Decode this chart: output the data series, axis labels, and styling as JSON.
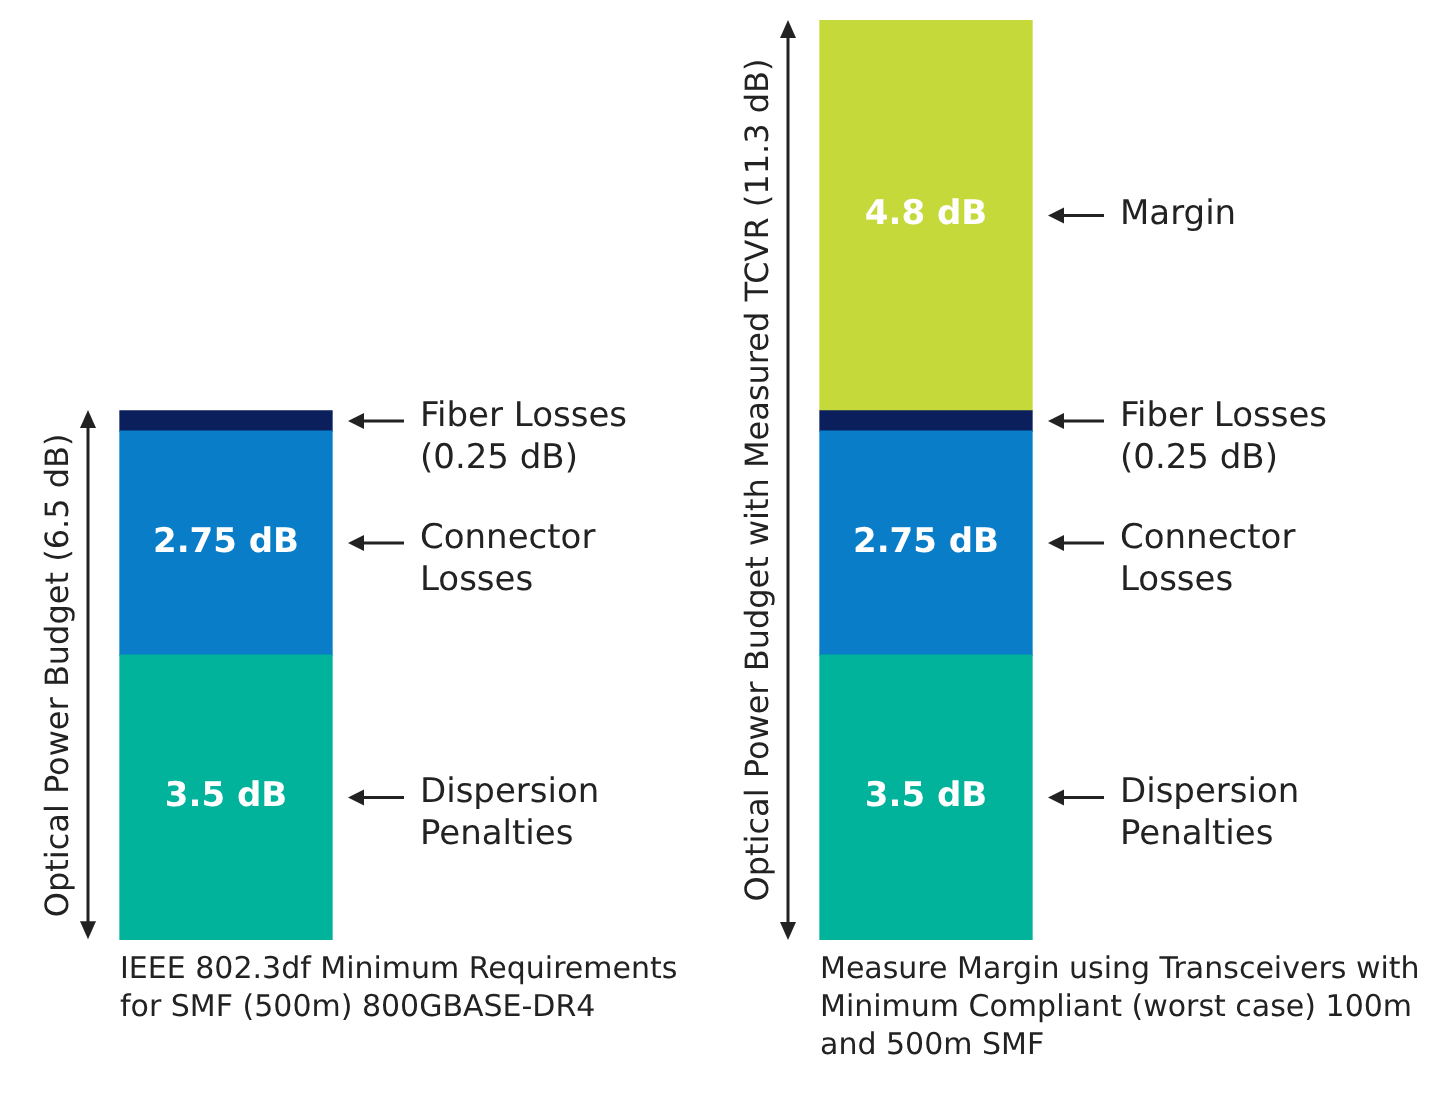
{
  "chart_data": [
    {
      "type": "bar",
      "stacked": true,
      "categories": [
        null
      ],
      "ylabel": "Optical Power Budget (6.5 dB)",
      "series": [
        {
          "name": "Dispersion Penalties",
          "color": "#00b39a",
          "values": [
            3.5
          ],
          "value_labels": [
            "3.5 dB"
          ]
        },
        {
          "name": "Connector Losses",
          "color": "#0a7dc8",
          "values": [
            2.75
          ],
          "value_labels": [
            "2.75 dB"
          ]
        },
        {
          "name": "Fiber Losses (0.25 dB)",
          "color": "#0a1f5c",
          "values": [
            0.25
          ],
          "value_labels": [
            null
          ]
        }
      ],
      "annotations": [
        "IEEE 802.3df Minimum Requirements for SMF (500m) 800GBASE-DR4"
      ]
    },
    {
      "type": "bar",
      "stacked": true,
      "categories": [
        null
      ],
      "ylabel": "Optical Power Budget with Measured TCVR (11.3 dB)",
      "series": [
        {
          "name": "Dispersion Penalties",
          "color": "#00b39a",
          "values": [
            3.5
          ],
          "value_labels": [
            "3.5 dB"
          ]
        },
        {
          "name": "Connector Losses",
          "color": "#0a7dc8",
          "values": [
            2.75
          ],
          "value_labels": [
            "2.75 dB"
          ]
        },
        {
          "name": "Fiber Losses (0.25 dB)",
          "color": "#0a1f5c",
          "values": [
            0.25
          ],
          "value_labels": [
            null
          ]
        },
        {
          "name": "Margin",
          "color": "#c6d93a",
          "values": [
            4.8
          ],
          "value_labels": [
            "4.8 dB"
          ]
        }
      ],
      "annotations": [
        "Measure Margin using Transceivers with Minimum Compliant (worst case) 100m and 500m SMF"
      ]
    }
  ]
}
